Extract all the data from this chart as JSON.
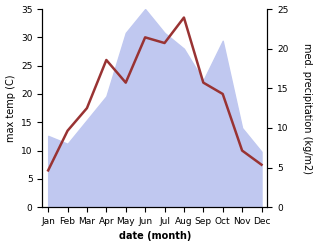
{
  "months": [
    "Jan",
    "Feb",
    "Mar",
    "Apr",
    "May",
    "Jun",
    "Jul",
    "Aug",
    "Sep",
    "Oct",
    "Nov",
    "Dec"
  ],
  "month_positions": [
    0,
    1,
    2,
    3,
    4,
    5,
    6,
    7,
    8,
    9,
    10,
    11
  ],
  "temperature": [
    6.5,
    13.5,
    17.5,
    26,
    22,
    30,
    29,
    33.5,
    22,
    20,
    10,
    7.5
  ],
  "precipitation": [
    9,
    8,
    11,
    14,
    22,
    25,
    22,
    20,
    16,
    21,
    10,
    7
  ],
  "temp_color": "#993333",
  "precip_fill_color": "#c0c8f0",
  "ylabel_left": "max temp (C)",
  "ylabel_right": "med. precipitation (kg/m2)",
  "xlabel": "date (month)",
  "ylim_left": [
    0,
    35
  ],
  "ylim_right": [
    0,
    25
  ],
  "yticks_left": [
    0,
    5,
    10,
    15,
    20,
    25,
    30,
    35
  ],
  "yticks_right": [
    0,
    5,
    10,
    15,
    20,
    25
  ],
  "bg_color": "#ffffff",
  "line_width": 1.8,
  "label_fontsize": 7,
  "tick_fontsize": 6.5
}
